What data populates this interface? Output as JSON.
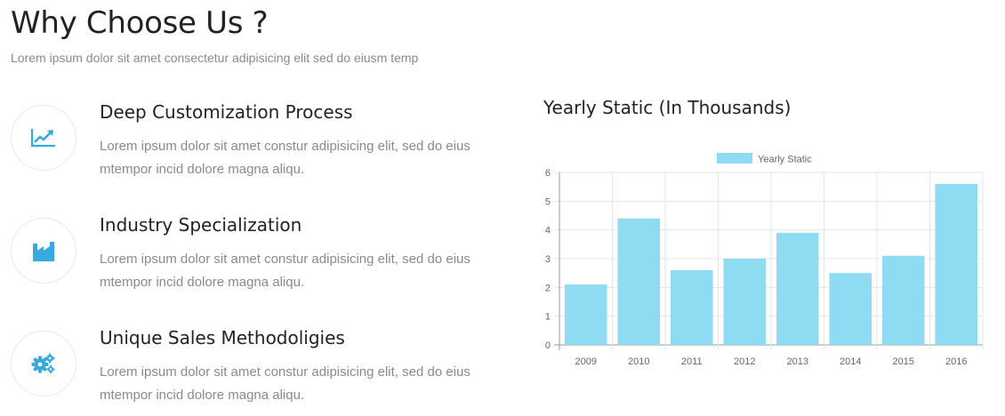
{
  "header": {
    "title": "Why Choose Us ?",
    "subtitle": "Lorem ipsum dolor sit amet consectetur adipisicing elit sed do eiusm temp"
  },
  "features": [
    {
      "icon": "trending-up-icon",
      "title": "Deep Customization Process",
      "text": "Lorem ipsum dolor sit amet constur adipisicing elit, sed do eius mtempor incid dolore magna aliqu."
    },
    {
      "icon": "factory-icon",
      "title": "Industry Specialization",
      "text": "Lorem ipsum dolor sit amet constur adipisicing elit, sed do eius mtempor incid dolore magna aliqu."
    },
    {
      "icon": "gears-icon",
      "title": "Unique Sales Methodoligies",
      "text": "Lorem ipsum dolor sit amet constur adipisicing elit, sed do eius mtempor incid dolore magna aliqu."
    }
  ],
  "colors": {
    "accent": "#36a9e1",
    "bar": "#8fdcf2",
    "grid": "#e5e5e5"
  },
  "chart_heading": "Yearly Static (In Thousands)",
  "chart_data": {
    "type": "bar",
    "categories": [
      "2009",
      "2010",
      "2011",
      "2012",
      "2013",
      "2014",
      "2015",
      "2016"
    ],
    "series": [
      {
        "name": "Yearly Static",
        "values": [
          2.1,
          4.4,
          2.6,
          3.0,
          3.9,
          2.5,
          3.1,
          5.6
        ]
      }
    ],
    "ylim": [
      0,
      6
    ],
    "yticks": [
      0,
      1,
      2,
      3,
      4,
      5,
      6
    ],
    "grid": true,
    "legend": "top-center"
  }
}
